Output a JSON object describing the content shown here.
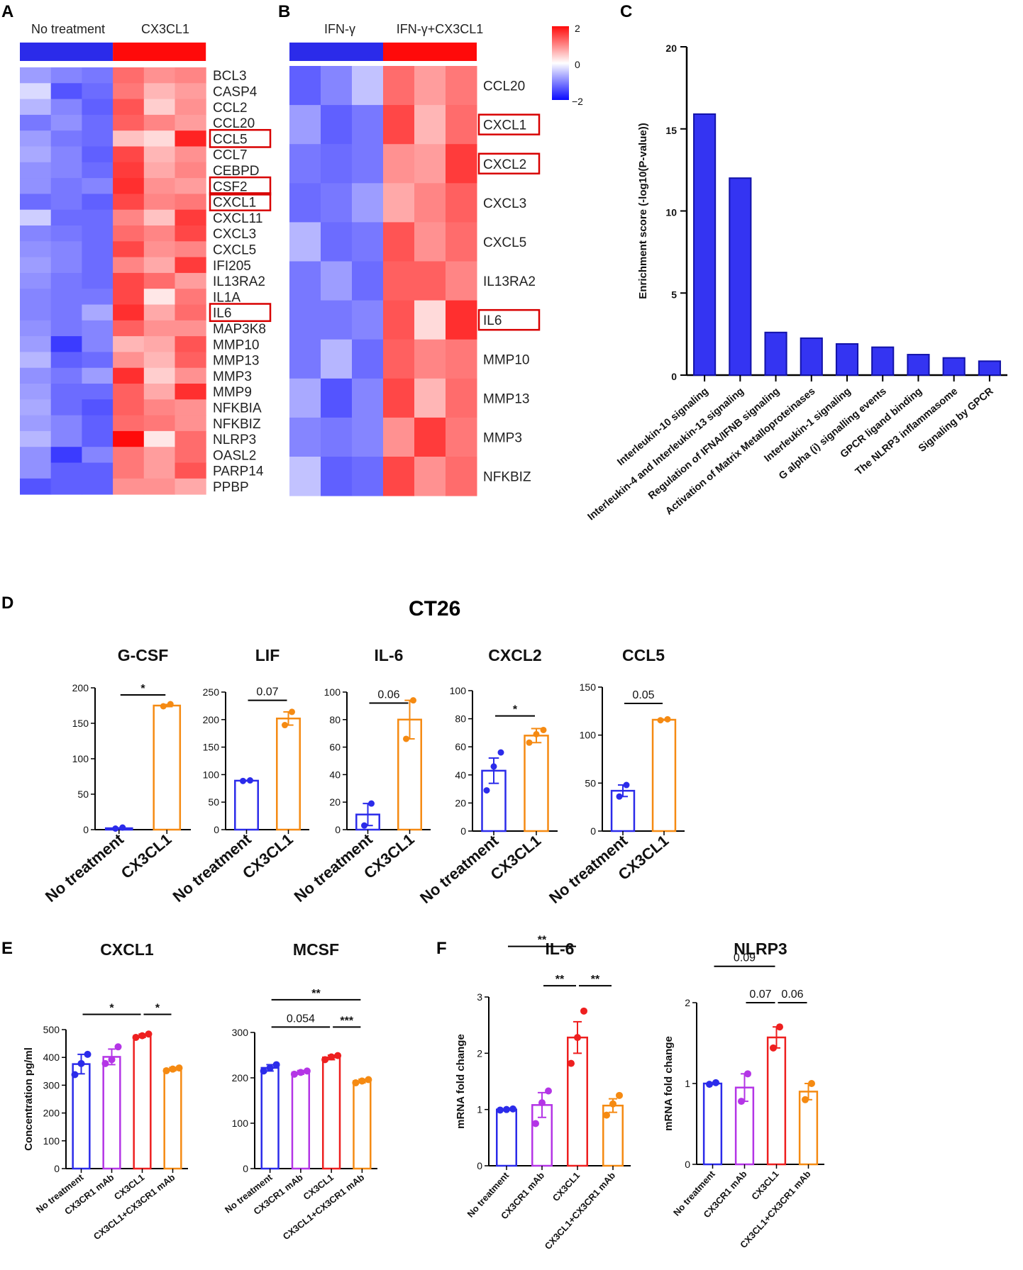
{
  "panel_labels": [
    "A",
    "B",
    "C",
    "D",
    "E",
    "F"
  ],
  "panel_a": {
    "groups": [
      "No treatment",
      "CX3CL1"
    ],
    "group_colors": [
      "#1515e8",
      "#ff0a0a"
    ],
    "genes": [
      "BCL3",
      "CASP4",
      "CCL2",
      "CCL20",
      "CCL5",
      "CCL7",
      "CEBPD",
      "CSF2",
      "CXCL1",
      "CXCL11",
      "CXCL3",
      "CXCL5",
      "IFI205",
      "IL13RA2",
      "IL1A",
      "IL6",
      "MAP3K8",
      "MMP10",
      "MMP13",
      "MMP3",
      "MMP9",
      "NFKBIA",
      "NFKBIZ",
      "NLRP3",
      "OASL2",
      "PARP14",
      "PPBP"
    ],
    "highlighted": [
      "CCL5",
      "CSF2",
      "CXCL1",
      "IL6"
    ],
    "values": [
      [
        -0.8,
        -1.0,
        -1.1,
        1.2,
        0.9,
        1.0
      ],
      [
        -0.3,
        -1.4,
        -1.2,
        1.1,
        0.6,
        0.8
      ],
      [
        -0.6,
        -1.0,
        -1.3,
        1.4,
        0.4,
        0.9
      ],
      [
        -1.1,
        -0.9,
        -1.2,
        1.3,
        1.0,
        0.8
      ],
      [
        -0.8,
        -1.1,
        -1.2,
        0.5,
        0.3,
        1.8
      ],
      [
        -0.7,
        -1.0,
        -1.3,
        1.5,
        0.6,
        0.9
      ],
      [
        -0.9,
        -1.0,
        -1.2,
        1.6,
        0.7,
        1.0
      ],
      [
        -0.9,
        -1.1,
        -1.0,
        1.7,
        0.9,
        0.8
      ],
      [
        -1.2,
        -1.1,
        -1.3,
        1.5,
        1.0,
        1.1
      ],
      [
        -0.4,
        -1.2,
        -1.2,
        1.0,
        0.5,
        1.6
      ],
      [
        -1.0,
        -1.1,
        -1.2,
        1.2,
        1.0,
        1.5
      ],
      [
        -0.9,
        -1.0,
        -1.2,
        1.5,
        0.9,
        1.0
      ],
      [
        -0.8,
        -1.0,
        -1.2,
        1.0,
        0.7,
        1.6
      ],
      [
        -0.9,
        -1.1,
        -1.2,
        1.5,
        1.2,
        0.8
      ],
      [
        -1.0,
        -1.1,
        -1.1,
        1.5,
        0.2,
        1.1
      ],
      [
        -1.0,
        -1.1,
        -0.7,
        1.7,
        0.7,
        1.2
      ],
      [
        -0.9,
        -1.1,
        -1.0,
        1.3,
        0.9,
        0.9
      ],
      [
        -0.8,
        -1.6,
        -1.0,
        0.6,
        0.7,
        1.4
      ],
      [
        -0.6,
        -1.3,
        -1.2,
        0.9,
        0.6,
        1.3
      ],
      [
        -0.9,
        -1.1,
        -0.8,
        1.7,
        0.4,
        0.9
      ],
      [
        -0.8,
        -1.2,
        -1.2,
        1.3,
        0.7,
        1.7
      ],
      [
        -0.7,
        -1.2,
        -1.4,
        1.3,
        1.0,
        0.9
      ],
      [
        -0.8,
        -1.0,
        -1.3,
        1.2,
        1.1,
        0.9
      ],
      [
        -0.6,
        -1.0,
        -1.3,
        2.0,
        0.2,
        1.2
      ],
      [
        -0.9,
        -1.6,
        -1.0,
        1.1,
        0.8,
        1.2
      ],
      [
        -0.9,
        -1.3,
        -1.3,
        1.1,
        0.8,
        1.4
      ],
      [
        -1.4,
        -1.3,
        -1.3,
        0.9,
        0.9,
        0.7
      ]
    ]
  },
  "panel_b": {
    "groups": [
      "IFN-γ",
      "IFN-γ+CX3CL1"
    ],
    "genes": [
      "CCL20",
      "CXCL1",
      "CXCL2",
      "CXCL3",
      "CXCL5",
      "IL13RA2",
      "IL6",
      "MMP10",
      "MMP13",
      "MMP3",
      "NFKBIZ"
    ],
    "highlighted": [
      "CXCL1",
      "CXCL2",
      "IL6"
    ],
    "values": [
      [
        -1.3,
        -1.0,
        -0.5,
        1.2,
        0.8,
        1.1
      ],
      [
        -0.8,
        -1.3,
        -1.1,
        1.5,
        0.6,
        1.2
      ],
      [
        -1.1,
        -1.2,
        -1.1,
        0.9,
        0.8,
        1.6
      ],
      [
        -1.2,
        -1.1,
        -0.8,
        0.7,
        1.0,
        1.3
      ],
      [
        -0.6,
        -1.2,
        -1.1,
        1.4,
        0.9,
        1.2
      ],
      [
        -1.1,
        -0.8,
        -1.2,
        1.3,
        1.3,
        1.0
      ],
      [
        -1.1,
        -1.1,
        -1.0,
        1.4,
        0.3,
        1.7
      ],
      [
        -1.1,
        -0.6,
        -1.2,
        1.3,
        1.0,
        1.1
      ],
      [
        -0.7,
        -1.4,
        -1.0,
        1.5,
        0.6,
        1.2
      ],
      [
        -1.0,
        -1.1,
        -1.0,
        0.9,
        1.6,
        1.1
      ],
      [
        -0.5,
        -1.3,
        -1.2,
        1.5,
        0.9,
        1.2
      ]
    ]
  },
  "colorbar": {
    "max_label": "2",
    "mid_label": "0",
    "min_label": "−2"
  },
  "chart_data": [
    {
      "type": "bar",
      "id": "C",
      "title": "",
      "ylabel": "Enrichment score (-log10(P-value))",
      "ylim": [
        0,
        20
      ],
      "yticks": [
        "0",
        "5",
        "10",
        "15",
        "20"
      ],
      "categories": [
        "Interleukin-10 signaling",
        "Interleukin-4 and Interleukin-13 signaling",
        "Regulation of IFNA/IFNB signaling",
        "Activation of Matrix Metalloproteinases",
        "Interleukin-1 signaling",
        "G alpha (i) signalling events",
        "GPCR ligand binding",
        "The NLRP3 inflammasome",
        "Signaling by GPCR"
      ],
      "values": [
        15.9,
        12.0,
        2.6,
        2.25,
        1.9,
        1.7,
        1.25,
        1.05,
        0.85
      ],
      "color": "#3434f2"
    },
    {
      "type": "bar",
      "id": "D1",
      "title": "G-CSF",
      "ylim": [
        0,
        200
      ],
      "yticks": [
        "0",
        "50",
        "100",
        "150",
        "200"
      ],
      "categories": [
        "No treatment",
        "CX3CL1"
      ],
      "values": [
        2,
        175
      ],
      "errors": [
        0.5,
        1.5
      ],
      "points": [
        [
          1.5,
          3
        ],
        [
          174,
          177
        ]
      ],
      "sig": [
        {
          "from": 0,
          "to": 1,
          "label": "*",
          "y": 190
        }
      ]
    },
    {
      "type": "bar",
      "id": "D2",
      "title": "LIF",
      "ylim": [
        0,
        250
      ],
      "yticks": [
        "0",
        "50",
        "100",
        "150",
        "200",
        "250"
      ],
      "categories": [
        "No treatment",
        "CX3CL1"
      ],
      "values": [
        89,
        202
      ],
      "errors": [
        0.5,
        12
      ],
      "points": [
        [
          88.5,
          89.5
        ],
        [
          190,
          214
        ]
      ],
      "sig": [
        {
          "from": 0,
          "to": 1,
          "label": "0.07",
          "y": 235
        }
      ]
    },
    {
      "type": "bar",
      "id": "D3",
      "title": "IL-6",
      "ylim": [
        0,
        100
      ],
      "yticks": [
        "0",
        "20",
        "40",
        "60",
        "80",
        "100"
      ],
      "categories": [
        "No treatment",
        "CX3CL1"
      ],
      "values": [
        11,
        80
      ],
      "errors": [
        8,
        14
      ],
      "points": [
        [
          3,
          19
        ],
        [
          66,
          94
        ]
      ],
      "sig": [
        {
          "from": 0,
          "to": 1,
          "label": "0.06",
          "y": 92
        }
      ]
    },
    {
      "type": "bar",
      "id": "D4",
      "title": "CXCL2",
      "ylim": [
        0,
        100
      ],
      "yticks": [
        "0",
        "20",
        "40",
        "60",
        "80",
        "100"
      ],
      "categories": [
        "No treatment",
        "CX3CL1"
      ],
      "values": [
        43,
        68
      ],
      "errors": [
        9,
        5
      ],
      "points": [
        [
          29,
          46,
          56
        ],
        [
          63,
          69,
          72
        ]
      ],
      "sig": [
        {
          "from": 0,
          "to": 1,
          "label": "*",
          "y": 82
        }
      ]
    },
    {
      "type": "bar",
      "id": "D5",
      "title": "CCL5",
      "ylim": [
        0,
        150
      ],
      "yticks": [
        "0",
        "50",
        "100",
        "150"
      ],
      "categories": [
        "No treatment",
        "CX3CL1"
      ],
      "values": [
        42,
        116
      ],
      "errors": [
        6,
        0.5
      ],
      "points": [
        [
          36,
          48
        ],
        [
          115.5,
          116.5
        ]
      ],
      "sig": [
        {
          "from": 0,
          "to": 1,
          "label": "0.05",
          "y": 133
        }
      ]
    },
    {
      "type": "bar",
      "id": "E1",
      "title": "CXCL1",
      "ylabel": "Concentration pg/ml",
      "ylim": [
        0,
        500
      ],
      "yticks": [
        "0",
        "100",
        "200",
        "300",
        "400",
        "500"
      ],
      "categories": [
        "No treatment",
        "CX3CR1 mAb",
        "CX3CL1",
        "CX3CL1+CX3CR1 mAb"
      ],
      "values": [
        376,
        402,
        478,
        358
      ],
      "errors": [
        35,
        28,
        6,
        6
      ],
      "points": [
        [
          338,
          378,
          411
        ],
        [
          378,
          392,
          438
        ],
        [
          472,
          478,
          484
        ],
        [
          352,
          358,
          362
        ]
      ],
      "sig": [
        {
          "from": 0,
          "to": 2,
          "label": "*",
          "y": 555
        },
        {
          "from": 2,
          "to": 3,
          "label": "*",
          "y": 555
        }
      ]
    },
    {
      "type": "bar",
      "id": "E2",
      "title": "MCSF",
      "ylim": [
        0,
        300
      ],
      "yticks": [
        "0",
        "100",
        "200",
        "300"
      ],
      "categories": [
        "No treatment",
        "CX3CR1 mAb",
        "CX3CL1",
        "CX3CL1+CX3CR1 mAb"
      ],
      "values": [
        222,
        212,
        245,
        193
      ],
      "errors": [
        7,
        4,
        5,
        4
      ],
      "points": [
        [
          215,
          222,
          229
        ],
        [
          208,
          212,
          215
        ],
        [
          240,
          246,
          249
        ],
        [
          189,
          193,
          196
        ]
      ],
      "sig": [
        {
          "from": 0,
          "to": 3,
          "label": "**",
          "y": 372
        },
        {
          "from": 0,
          "to": 2,
          "label": "0.054",
          "y": 312
        },
        {
          "from": 2,
          "to": 3,
          "label": "***",
          "y": 312
        }
      ]
    },
    {
      "type": "bar",
      "id": "F1",
      "title": "IL-6",
      "ylabel": "mRNA fold change",
      "ylim": [
        0,
        3
      ],
      "yticks": [
        "0",
        "1",
        "2",
        "3"
      ],
      "categories": [
        "No treatment",
        "CX3CR1 mAb",
        "CX3CL1",
        "CX3CL1+CX3CR1 mAb"
      ],
      "values": [
        1.0,
        1.08,
        2.28,
        1.07
      ],
      "errors": [
        0.01,
        0.22,
        0.28,
        0.12
      ],
      "points": [
        [
          0.99,
          1.0,
          1.01
        ],
        [
          0.75,
          1.12,
          1.33
        ],
        [
          1.82,
          2.28,
          2.75
        ],
        [
          0.9,
          1.1,
          1.25
        ]
      ],
      "sig": [
        {
          "from": 0,
          "to": 2,
          "label": "**",
          "y": 3.9
        },
        {
          "from": 1,
          "to": 2,
          "label": "**",
          "y": 3.2
        },
        {
          "from": 2,
          "to": 3,
          "label": "**",
          "y": 3.2
        }
      ]
    },
    {
      "type": "bar",
      "id": "F2",
      "title": "NLRP3",
      "ylabel": "mRNA fold change",
      "ylim": [
        0,
        2
      ],
      "yticks": [
        "0",
        "1",
        "2"
      ],
      "categories": [
        "No treatment",
        "CX3CR1 mAb",
        "CX3CL1",
        "CX3CL1+CX3CR1 mAb"
      ],
      "values": [
        1.0,
        0.95,
        1.57,
        0.9
      ],
      "errors": [
        0.01,
        0.17,
        0.13,
        0.1
      ],
      "points": [
        [
          0.99,
          1.01
        ],
        [
          0.78,
          1.12
        ],
        [
          1.44,
          1.7
        ],
        [
          0.8,
          1.0
        ]
      ],
      "sig": [
        {
          "from": 0,
          "to": 2,
          "label": "0.09",
          "y": 2.45
        },
        {
          "from": 1,
          "to": 2,
          "label": "0.07",
          "y": 2.0
        },
        {
          "from": 2,
          "to": 3,
          "label": "0.06",
          "y": 2.0
        }
      ]
    }
  ],
  "panel_d_title": "CT26",
  "colors": {
    "blue": "#2b2bea",
    "purple": "#b435e6",
    "red": "#ee1f1f",
    "orange": "#f58a12",
    "highlight": "#d80000"
  }
}
